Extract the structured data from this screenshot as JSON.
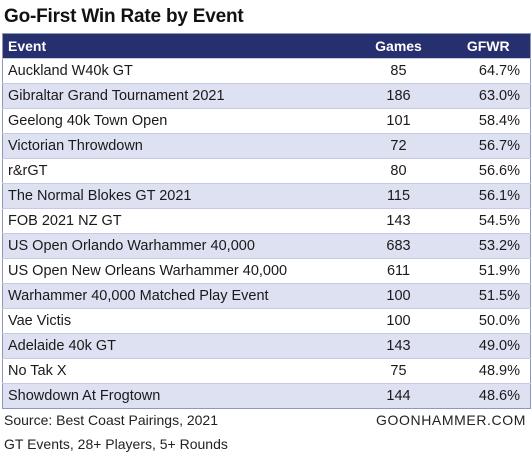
{
  "chart_data": {
    "type": "table",
    "title": "Go-First Win Rate by Event",
    "columns": [
      "Event",
      "Games",
      "GFWR"
    ],
    "rows": [
      {
        "event": "Auckland W40k GT",
        "games": 85,
        "gfwr": "64.7%"
      },
      {
        "event": "Gibraltar Grand Tournament 2021",
        "games": 186,
        "gfwr": "63.0%"
      },
      {
        "event": "Geelong 40k Town Open",
        "games": 101,
        "gfwr": "58.4%"
      },
      {
        "event": "Victorian Throwdown",
        "games": 72,
        "gfwr": "56.7%"
      },
      {
        "event": "r&rGT",
        "games": 80,
        "gfwr": "56.6%"
      },
      {
        "event": "The Normal Blokes GT 2021",
        "games": 115,
        "gfwr": "56.1%"
      },
      {
        "event": "FOB 2021 NZ GT",
        "games": 143,
        "gfwr": "54.5%"
      },
      {
        "event": "US Open Orlando Warhammer 40,000",
        "games": 683,
        "gfwr": "53.2%"
      },
      {
        "event": "US Open New Orleans Warhammer 40,000",
        "games": 611,
        "gfwr": "51.9%"
      },
      {
        "event": "Warhammer 40,000 Matched Play Event",
        "games": 100,
        "gfwr": "51.5%"
      },
      {
        "event": "Vae Victis",
        "games": 100,
        "gfwr": "50.0%"
      },
      {
        "event": "Adelaide 40k GT",
        "games": 143,
        "gfwr": "49.0%"
      },
      {
        "event": "No Tak X",
        "games": 75,
        "gfwr": "48.9%"
      },
      {
        "event": "Showdown At Frogtown",
        "games": 144,
        "gfwr": "48.6%"
      }
    ],
    "source": "Source: Best Coast Pairings, 2021",
    "brand": "GOONHAMMER.COM",
    "note": "GT Events, 28+ Players, 5+ Rounds",
    "colors": {
      "header_bg": "#27306f",
      "header_text": "#ffffff",
      "band": "#dde1f1"
    }
  }
}
